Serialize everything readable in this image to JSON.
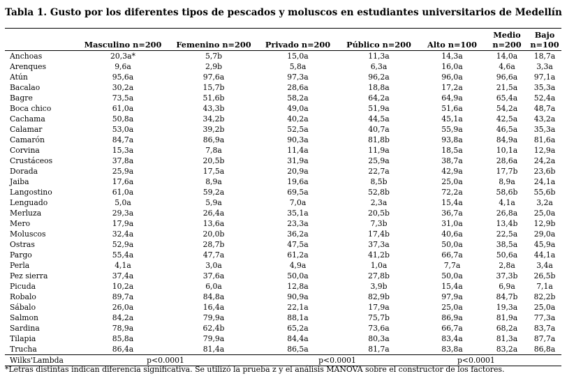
{
  "title": "Tabla 1. Gusto por los diferentes tipos de pescados y moluscos en estudiantes universitarios de Medellín",
  "columns": [
    "Masculino n=200",
    "Femenino n=200",
    "Privado n=200",
    "Público n=200",
    "Alto n=100",
    "Medio n=200",
    "Bajo n=100"
  ],
  "rows": [
    {
      "name": "Anchoas",
      "values": [
        "20,3a*",
        "5,7b",
        "15,0a",
        "11,3a",
        "14,3a",
        "14,0a",
        "18,7a"
      ]
    },
    {
      "name": "Arenques",
      "values": [
        "9,6a",
        "2,9b",
        "5,8a",
        "6,3a",
        "16,0a",
        "4,6a",
        "3,3a"
      ]
    },
    {
      "name": "Atún",
      "values": [
        "95,6a",
        "97,6a",
        "97,3a",
        "96,2a",
        "96,0a",
        "96,6a",
        "97,1a"
      ]
    },
    {
      "name": "Bacalao",
      "values": [
        "30,2a",
        "15,7b",
        "28,6a",
        "18,8a",
        "17,2a",
        "21,5a",
        "35,3a"
      ]
    },
    {
      "name": "Bagre",
      "values": [
        "73,5a",
        "51,6b",
        "58,2a",
        "64,2a",
        "64,9a",
        "65,4a",
        "52,4a"
      ]
    },
    {
      "name": "Boca chico",
      "values": [
        "61,0a",
        "43,3b",
        "49,0a",
        "51,9a",
        "51,6a",
        "54,2a",
        "48,7a"
      ]
    },
    {
      "name": "Cachama",
      "values": [
        "50,8a",
        "34,2b",
        "40,2a",
        "44,5a",
        "45,1a",
        "42,5a",
        "43,2a"
      ]
    },
    {
      "name": "Calamar",
      "values": [
        "53,0a",
        "39,2b",
        "52,5a",
        "40,7a",
        "55,9a",
        "46,5a",
        "35,3a"
      ]
    },
    {
      "name": "Camarón",
      "values": [
        "84,7a",
        "86,9a",
        "90,3a",
        "81,8b",
        "93,8a",
        "84,9a",
        "81,6a"
      ]
    },
    {
      "name": "Corvina",
      "values": [
        "15,3a",
        "7,8a",
        "11,4a",
        "11,9a",
        "18,5a",
        "10,1a",
        "12,9a"
      ]
    },
    {
      "name": "Crustáceos",
      "values": [
        "37,8a",
        "20,5b",
        "31,9a",
        "25,9a",
        "38,7a",
        "28,6a",
        "24,2a"
      ]
    },
    {
      "name": "Dorada",
      "values": [
        "25,9a",
        "17,5a",
        "20,9a",
        "22,7a",
        "42,9a",
        "17,7b",
        "23,6b"
      ]
    },
    {
      "name": "Jaiba",
      "values": [
        "17,6a",
        "8,9a",
        "19,6a",
        "8,5b",
        "25,0a",
        "8,9a",
        "24,1a"
      ]
    },
    {
      "name": "Langostino",
      "values": [
        "61,0a",
        "59,2a",
        "69,5a",
        "52,8b",
        "72,2a",
        "58,6b",
        "55,6b"
      ]
    },
    {
      "name": "Lenguado",
      "values": [
        "5,0a",
        "5,9a",
        "7,0a",
        "2,3a",
        "15,4a",
        "4,1a",
        "3,2a"
      ]
    },
    {
      "name": "Merluza",
      "values": [
        "29,3a",
        "26,4a",
        "35,1a",
        "20,5b",
        "36,7a",
        "26,8a",
        "25,0a"
      ]
    },
    {
      "name": "Mero",
      "values": [
        "17,9a",
        "13,6a",
        "23,3a",
        "7,3b",
        "31,0a",
        "13,4b",
        "12,9b"
      ]
    },
    {
      "name": "Moluscos",
      "values": [
        "32,4a",
        "20,0b",
        "36,2a",
        "17,4b",
        "40,6a",
        "22,5a",
        "29,0a"
      ]
    },
    {
      "name": "Ostras",
      "values": [
        "52,9a",
        "28,7b",
        "47,5a",
        "37,3a",
        "50,0a",
        "38,5a",
        "45,9a"
      ]
    },
    {
      "name": "Pargo",
      "values": [
        "55,4a",
        "47,7a",
        "61,2a",
        "41,2b",
        "66,7a",
        "50,6a",
        "44,1a"
      ]
    },
    {
      "name": "Perla",
      "values": [
        "4,1a",
        "3,0a",
        "4,9a",
        "1,0a",
        "7,7a",
        "2,8a",
        "3,4a"
      ]
    },
    {
      "name": "Pez sierra",
      "values": [
        "37,4a",
        "37,6a",
        "50,0a",
        "27,8b",
        "50,0a",
        "37,3b",
        "26,5b"
      ]
    },
    {
      "name": "Picuda",
      "values": [
        "10,2a",
        "6,0a",
        "12,8a",
        "3,9b",
        "15,4a",
        "6,9a",
        "7,1a"
      ]
    },
    {
      "name": "Robalo",
      "values": [
        "89,7a",
        "84,8a",
        "90,9a",
        "82,9b",
        "97,9a",
        "84,7b",
        "82,2b"
      ]
    },
    {
      "name": "Sábalo",
      "values": [
        "26,0a",
        "16,4a",
        "22,1a",
        "17,9a",
        "25,0a",
        "19,3a",
        "25,0a"
      ]
    },
    {
      "name": "Salmon",
      "values": [
        "84,2a",
        "79,9a",
        "88,1a",
        "75,7b",
        "86,9a",
        "81,9a",
        "77,3a"
      ]
    },
    {
      "name": "Sardina",
      "values": [
        "78,9a",
        "62,4b",
        "65,2a",
        "73,6a",
        "66,7a",
        "68,2a",
        "83,7a"
      ]
    },
    {
      "name": "Tilapia",
      "values": [
        "85,8a",
        "79,9a",
        "84,4a",
        "80,3a",
        "83,4a",
        "81,3a",
        "87,7a"
      ]
    },
    {
      "name": "Trucha",
      "values": [
        "86,4a",
        "81,4a",
        "86,5a",
        "81,7a",
        "83,8a",
        "83,2a",
        "86,8a"
      ]
    }
  ],
  "wilks": {
    "label": "Wilks'Lambda",
    "gender": "p<0.0001",
    "university": "p<0.0001",
    "stratum": "p<0.0001"
  },
  "footnote": "*Letras distintas indican diferencia significativa. Se utilizó la prueba z y el análisis MANOVA sobre el constructor de los factores."
}
